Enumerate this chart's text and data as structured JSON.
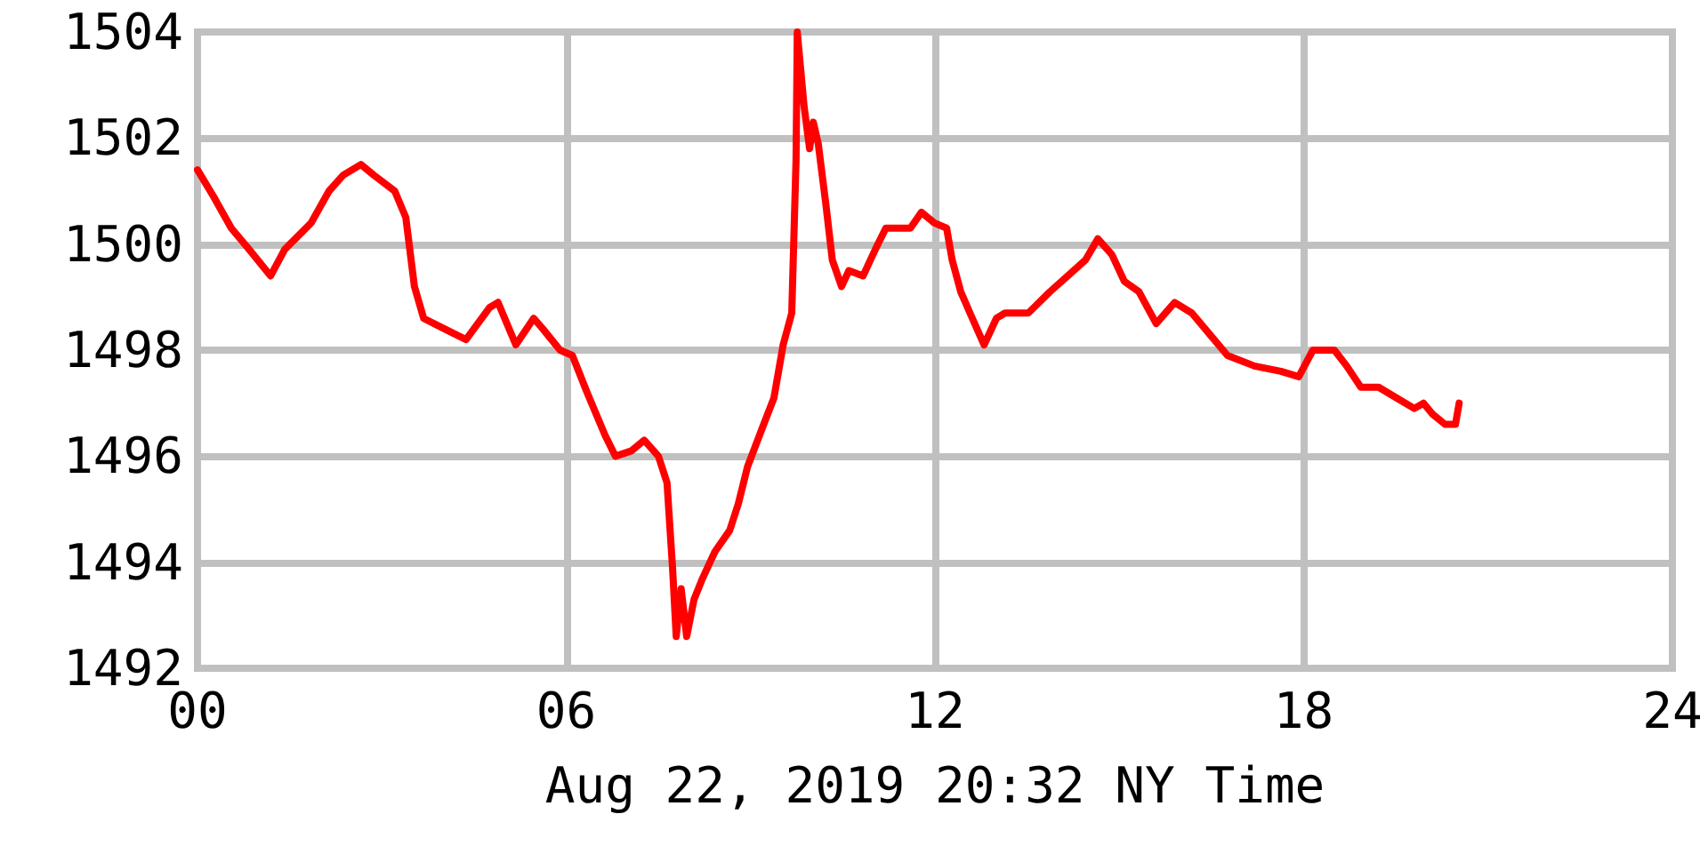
{
  "chart_data": {
    "type": "line",
    "xlabel": "Aug 22, 2019 20:32 NY Time",
    "x": [
      0,
      0.26,
      0.55,
      0.84,
      1.19,
      1.42,
      1.85,
      2.14,
      2.37,
      2.66,
      2.87,
      3.21,
      3.39,
      3.53,
      3.68,
      4.02,
      4.37,
      4.75,
      4.89,
      5.18,
      5.47,
      5.62,
      5.9,
      6.1,
      6.34,
      6.63,
      6.8,
      7.06,
      7.27,
      7.5,
      7.64,
      7.73,
      7.79,
      7.87,
      7.96,
      8.08,
      8.22,
      8.42,
      8.66,
      8.8,
      8.95,
      9.18,
      9.38,
      9.53,
      9.67,
      9.74,
      9.76,
      9.87,
      9.96,
      10.02,
      10.1,
      10.22,
      10.33,
      10.48,
      10.6,
      10.83,
      11.03,
      11.2,
      11.4,
      11.6,
      11.78,
      11.99,
      12.19,
      12.28,
      12.42,
      12.57,
      12.8,
      13.0,
      13.14,
      13.52,
      13.87,
      14.16,
      14.45,
      14.65,
      14.88,
      15.08,
      15.32,
      15.6,
      15.9,
      16.18,
      16.47,
      16.76,
      17.2,
      17.63,
      17.92,
      18.15,
      18.5,
      18.7,
      18.93,
      19.22,
      19.51,
      19.8,
      19.95,
      20.09,
      20.3,
      20.47,
      20.53
    ],
    "series": [
      {
        "color": "#ff0000",
        "values": [
          1501.4,
          1500.9,
          1500.3,
          1499.9,
          1499.4,
          1499.9,
          1500.4,
          1501.0,
          1501.3,
          1501.5,
          1501.3,
          1501.0,
          1500.5,
          1499.2,
          1498.6,
          1498.4,
          1498.2,
          1498.8,
          1498.9,
          1498.1,
          1498.6,
          1498.4,
          1498.0,
          1497.9,
          1497.2,
          1496.4,
          1496.0,
          1496.1,
          1496.3,
          1496.0,
          1495.5,
          1493.9,
          1492.6,
          1493.5,
          1492.6,
          1493.3,
          1493.7,
          1494.2,
          1494.6,
          1495.1,
          1495.8,
          1496.5,
          1497.1,
          1498.1,
          1498.7,
          1501.6,
          1504.0,
          1502.6,
          1501.8,
          1502.3,
          1501.9,
          1500.8,
          1499.7,
          1499.2,
          1499.5,
          1499.4,
          1499.9,
          1500.3,
          1500.3,
          1500.3,
          1500.6,
          1500.4,
          1500.3,
          1499.7,
          1499.1,
          1498.7,
          1498.1,
          1498.6,
          1498.7,
          1498.7,
          1499.1,
          1499.4,
          1499.7,
          1500.1,
          1499.8,
          1499.3,
          1499.1,
          1498.5,
          1498.9,
          1498.7,
          1498.3,
          1497.9,
          1497.7,
          1497.6,
          1497.5,
          1498.0,
          1498.0,
          1497.7,
          1497.3,
          1497.3,
          1497.1,
          1496.9,
          1497.0,
          1496.8,
          1496.6,
          1496.6,
          1497.0
        ]
      }
    ],
    "xlim": [
      0,
      24
    ],
    "xticks": [
      {
        "value": 0,
        "label": "00"
      },
      {
        "value": 6,
        "label": "06"
      },
      12,
      18,
      24
    ],
    "ylim": [
      1492,
      1504
    ],
    "yticks": [
      1492,
      1494,
      1496,
      1498,
      1500,
      1502,
      1504
    ],
    "grid": true,
    "marker": "none",
    "line_style": "solid"
  }
}
